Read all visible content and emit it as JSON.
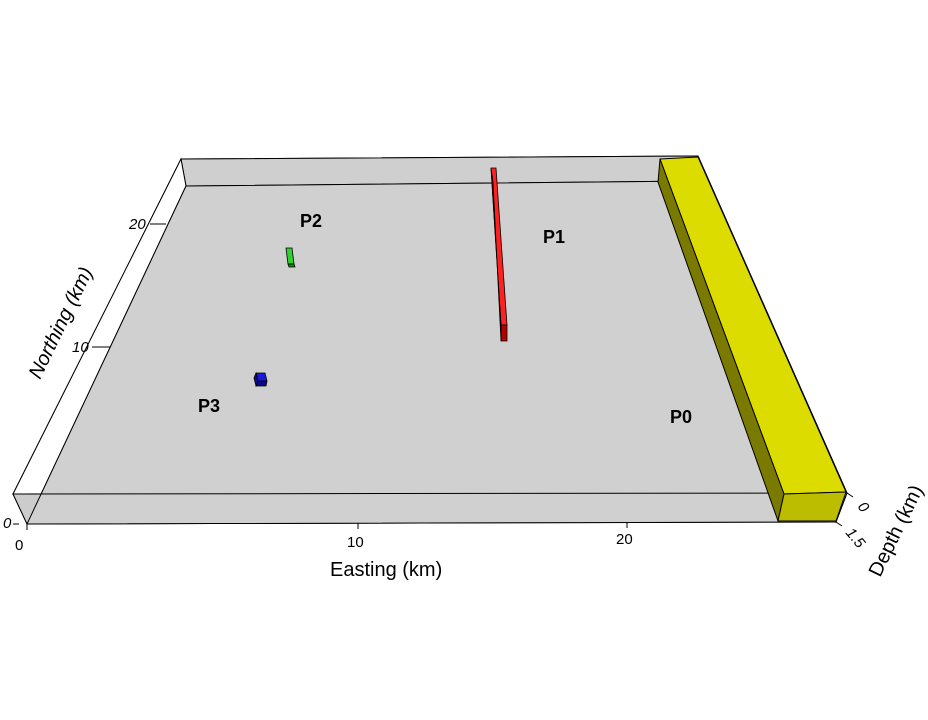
{
  "axes": {
    "easting": {
      "label": "Easting (km)",
      "ticks": [
        "0",
        "10",
        "20"
      ]
    },
    "northing": {
      "label": "Northing (km)",
      "ticks": [
        "0",
        "10",
        "20"
      ]
    },
    "depth": {
      "label": "Depth (km)",
      "ticks": [
        "0",
        "1.5"
      ]
    }
  },
  "bodies": [
    {
      "id": "P0",
      "label": "P0",
      "color": "#dcdc00"
    },
    {
      "id": "P1",
      "label": "P1",
      "color": "#e31a1a"
    },
    {
      "id": "P2",
      "label": "P2",
      "color": "#1fb81f"
    },
    {
      "id": "P3",
      "label": "P3",
      "color": "#1010c8"
    }
  ],
  "colors": {
    "model_surface": "#d2d2d2",
    "model_front": "#cccccc",
    "outline": "#000000"
  }
}
